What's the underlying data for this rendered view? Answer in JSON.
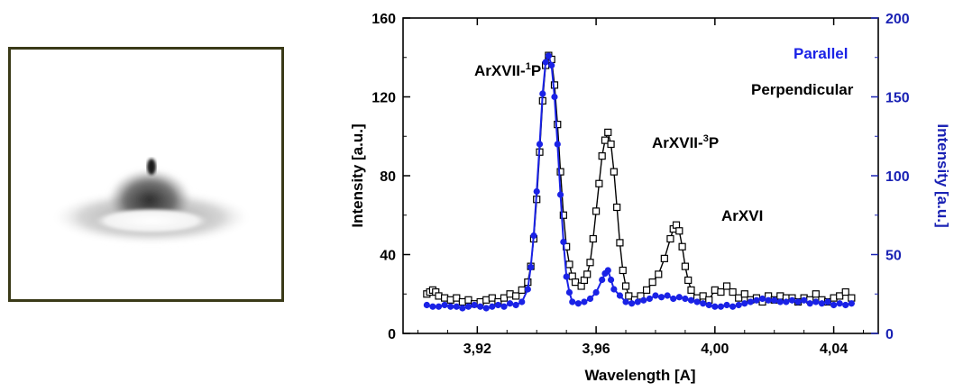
{
  "colors": {
    "perpendicular": "#000000",
    "parallel": "#1a22e6",
    "right_axis": "#1a22b4",
    "photo_frame": "#3a3a18"
  },
  "photo": {
    "icon": "plasma-emission-image"
  },
  "chart_data": {
    "type": "scatter",
    "xlabel": "Wavelength  [A]",
    "ylabel": "Intensity  [a.u.]",
    "y2label": "Intensity  [a.u.]",
    "xlim": [
      3.895,
      4.055
    ],
    "ylim": [
      0,
      160
    ],
    "y2lim": [
      0,
      200
    ],
    "xticks": [
      3.92,
      3.96,
      4.0,
      4.04
    ],
    "xtick_labels": [
      "3,92",
      "3,96",
      "4,00",
      "4,04"
    ],
    "yticks": [
      0,
      40,
      80,
      120,
      160
    ],
    "ytick_labels": [
      "0",
      "40",
      "80",
      "120",
      "160"
    ],
    "y2ticks": [
      0,
      50,
      100,
      150,
      200
    ],
    "y2tick_labels": [
      "0",
      "50",
      "100",
      "150",
      "200"
    ],
    "legend": {
      "parallel": "Parallel",
      "perpendicular": "Perpendicular"
    },
    "annotations": {
      "ar1p_base": "ArXVII-",
      "ar1p_sup": "1",
      "ar1p_end": "P",
      "ar3p_base": "ArXVII-",
      "ar3p_sup": "3",
      "ar3p_end": "P",
      "arxvi": "ArXVI"
    },
    "series": [
      {
        "name": "Perpendicular",
        "axis": "left",
        "marker": "open-square",
        "points": [
          [
            3.903,
            20
          ],
          [
            3.904,
            21
          ],
          [
            3.905,
            22
          ],
          [
            3.906,
            21
          ],
          [
            3.907,
            19
          ],
          [
            3.909,
            18
          ],
          [
            3.911,
            17
          ],
          [
            3.913,
            18
          ],
          [
            3.915,
            16
          ],
          [
            3.917,
            17
          ],
          [
            3.919,
            15
          ],
          [
            3.921,
            16
          ],
          [
            3.923,
            17
          ],
          [
            3.925,
            18
          ],
          [
            3.927,
            16
          ],
          [
            3.929,
            18
          ],
          [
            3.931,
            20
          ],
          [
            3.933,
            19
          ],
          [
            3.935,
            22
          ],
          [
            3.937,
            26
          ],
          [
            3.938,
            34
          ],
          [
            3.939,
            48
          ],
          [
            3.94,
            68
          ],
          [
            3.941,
            92
          ],
          [
            3.942,
            118
          ],
          [
            3.943,
            136
          ],
          [
            3.944,
            141
          ],
          [
            3.945,
            139
          ],
          [
            3.946,
            126
          ],
          [
            3.947,
            106
          ],
          [
            3.948,
            82
          ],
          [
            3.949,
            60
          ],
          [
            3.95,
            44
          ],
          [
            3.951,
            35
          ],
          [
            3.952,
            29
          ],
          [
            3.953,
            26
          ],
          [
            3.955,
            24
          ],
          [
            3.956,
            27
          ],
          [
            3.957,
            30
          ],
          [
            3.958,
            36
          ],
          [
            3.959,
            48
          ],
          [
            3.96,
            62
          ],
          [
            3.961,
            76
          ],
          [
            3.962,
            90
          ],
          [
            3.963,
            98
          ],
          [
            3.964,
            102
          ],
          [
            3.965,
            96
          ],
          [
            3.966,
            82
          ],
          [
            3.967,
            64
          ],
          [
            3.968,
            46
          ],
          [
            3.969,
            32
          ],
          [
            3.97,
            24
          ],
          [
            3.971,
            19
          ],
          [
            3.973,
            17
          ],
          [
            3.975,
            19
          ],
          [
            3.977,
            22
          ],
          [
            3.979,
            26
          ],
          [
            3.981,
            30
          ],
          [
            3.983,
            38
          ],
          [
            3.985,
            48
          ],
          [
            3.986,
            53
          ],
          [
            3.987,
            55
          ],
          [
            3.988,
            52
          ],
          [
            3.989,
            44
          ],
          [
            3.99,
            34
          ],
          [
            3.991,
            27
          ],
          [
            3.992,
            22
          ],
          [
            3.994,
            18
          ],
          [
            3.996,
            19
          ],
          [
            3.998,
            17
          ],
          [
            4.0,
            22
          ],
          [
            4.002,
            21
          ],
          [
            4.004,
            24
          ],
          [
            4.006,
            21
          ],
          [
            4.008,
            18
          ],
          [
            4.01,
            20
          ],
          [
            4.012,
            17
          ],
          [
            4.014,
            18
          ],
          [
            4.016,
            16
          ],
          [
            4.018,
            19
          ],
          [
            4.02,
            17
          ],
          [
            4.022,
            19
          ],
          [
            4.024,
            18
          ],
          [
            4.026,
            18
          ],
          [
            4.028,
            16
          ],
          [
            4.03,
            18
          ],
          [
            4.032,
            17
          ],
          [
            4.034,
            20
          ],
          [
            4.036,
            17
          ],
          [
            4.038,
            16
          ],
          [
            4.04,
            18
          ],
          [
            4.042,
            19
          ],
          [
            4.044,
            21
          ],
          [
            4.046,
            18
          ]
        ]
      },
      {
        "name": "Parallel",
        "axis": "right",
        "marker": "filled-circle",
        "points": [
          [
            3.903,
            18
          ],
          [
            3.905,
            17
          ],
          [
            3.907,
            17
          ],
          [
            3.909,
            18
          ],
          [
            3.911,
            17
          ],
          [
            3.913,
            17
          ],
          [
            3.915,
            16
          ],
          [
            3.917,
            17
          ],
          [
            3.919,
            18
          ],
          [
            3.921,
            17
          ],
          [
            3.923,
            16
          ],
          [
            3.925,
            17
          ],
          [
            3.927,
            18
          ],
          [
            3.929,
            17
          ],
          [
            3.931,
            19
          ],
          [
            3.933,
            18
          ],
          [
            3.935,
            20
          ],
          [
            3.937,
            28
          ],
          [
            3.938,
            42
          ],
          [
            3.939,
            62
          ],
          [
            3.94,
            90
          ],
          [
            3.941,
            120
          ],
          [
            3.942,
            152
          ],
          [
            3.943,
            172
          ],
          [
            3.944,
            176
          ],
          [
            3.945,
            170
          ],
          [
            3.946,
            150
          ],
          [
            3.947,
            120
          ],
          [
            3.948,
            88
          ],
          [
            3.949,
            58
          ],
          [
            3.95,
            36
          ],
          [
            3.951,
            26
          ],
          [
            3.952,
            20
          ],
          [
            3.954,
            19
          ],
          [
            3.956,
            20
          ],
          [
            3.958,
            22
          ],
          [
            3.96,
            26
          ],
          [
            3.962,
            34
          ],
          [
            3.963,
            38
          ],
          [
            3.964,
            40
          ],
          [
            3.965,
            34
          ],
          [
            3.966,
            28
          ],
          [
            3.968,
            24
          ],
          [
            3.97,
            20
          ],
          [
            3.972,
            19
          ],
          [
            3.974,
            20
          ],
          [
            3.976,
            21
          ],
          [
            3.978,
            22
          ],
          [
            3.98,
            24
          ],
          [
            3.982,
            23
          ],
          [
            3.984,
            24
          ],
          [
            3.986,
            22
          ],
          [
            3.988,
            23
          ],
          [
            3.99,
            22
          ],
          [
            3.992,
            21
          ],
          [
            3.994,
            20
          ],
          [
            3.996,
            19
          ],
          [
            3.998,
            18
          ],
          [
            4.0,
            17
          ],
          [
            4.002,
            17
          ],
          [
            4.004,
            18
          ],
          [
            4.006,
            17
          ],
          [
            4.008,
            18
          ],
          [
            4.01,
            19
          ],
          [
            4.012,
            20
          ],
          [
            4.014,
            21
          ],
          [
            4.016,
            22
          ],
          [
            4.018,
            21
          ],
          [
            4.02,
            21
          ],
          [
            4.022,
            20
          ],
          [
            4.024,
            20
          ],
          [
            4.026,
            21
          ],
          [
            4.028,
            20
          ],
          [
            4.03,
            21
          ],
          [
            4.032,
            19
          ],
          [
            4.034,
            20
          ],
          [
            4.036,
            19
          ],
          [
            4.038,
            20
          ],
          [
            4.04,
            18
          ],
          [
            4.042,
            19
          ],
          [
            4.044,
            18
          ],
          [
            4.046,
            19
          ]
        ]
      }
    ]
  }
}
